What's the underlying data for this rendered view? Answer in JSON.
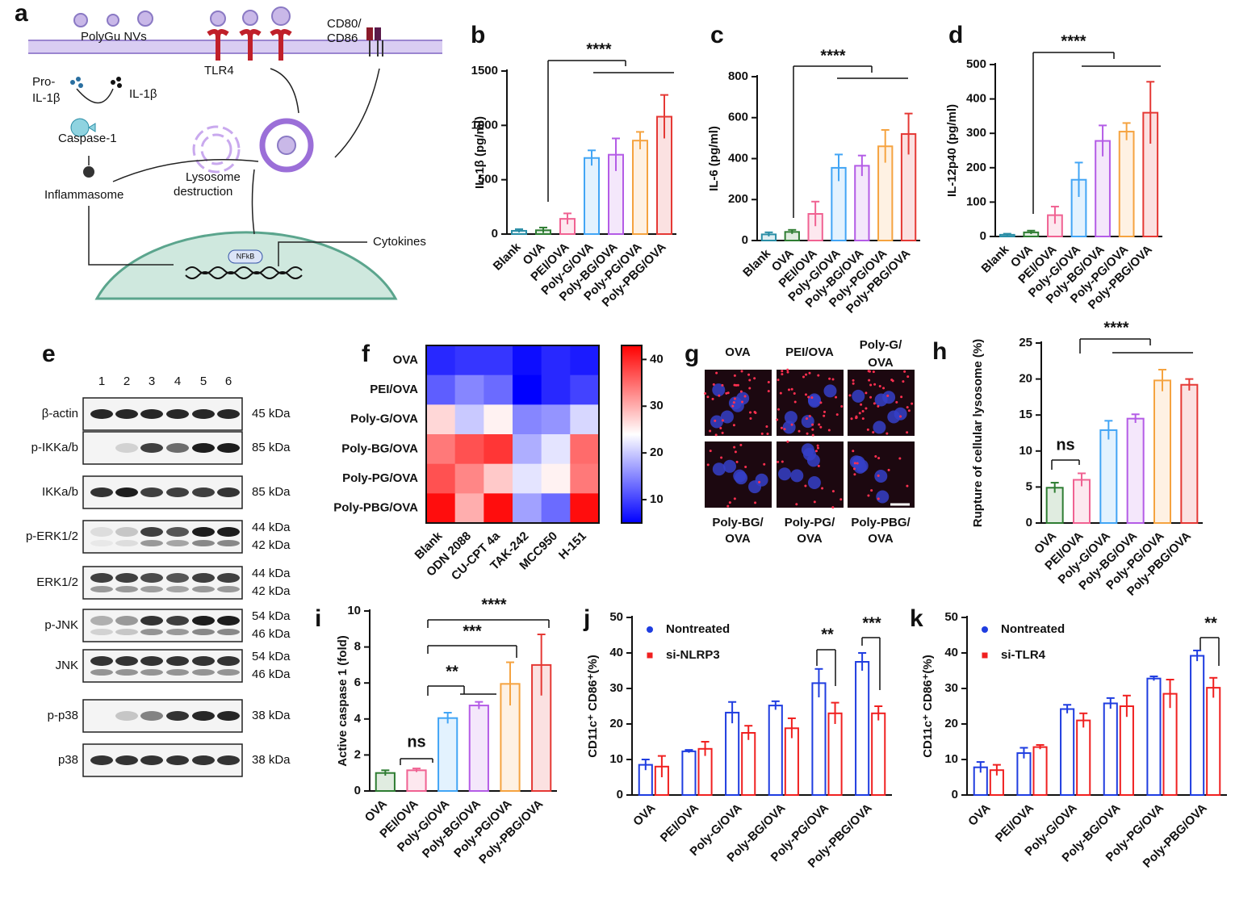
{
  "diagram": {
    "labels": [
      "a",
      "PolyGu NVs",
      "TLR4",
      "CD80/",
      "CD86",
      "Pro-",
      "IL-1β",
      "IL-1β",
      "Caspase-1",
      "Lysosome",
      "destruction",
      "Inflammasome",
      "NFkB",
      "Cytokines"
    ]
  },
  "blot": {
    "panel": "e",
    "lanes": [
      "1",
      "2",
      "3",
      "4",
      "5",
      "6"
    ],
    "rows": [
      {
        "name": "β-actin",
        "sizes": [
          "45 kDa"
        ]
      },
      {
        "name": "p-IKKa/b",
        "sizes": [
          "85 kDa"
        ]
      },
      {
        "name": "IKKa/b",
        "sizes": [
          "85 kDa"
        ]
      },
      {
        "name": "p-ERK1/2",
        "sizes": [
          "44 kDa",
          "42 kDa"
        ]
      },
      {
        "name": "ERK1/2",
        "sizes": [
          "44 kDa",
          "42 kDa"
        ]
      },
      {
        "name": "p-JNK",
        "sizes": [
          "54 kDa",
          "46 kDa"
        ]
      },
      {
        "name": "JNK",
        "sizes": [
          "54 kDa",
          "46 kDa"
        ]
      },
      {
        "name": "p-p38",
        "sizes": [
          "38 kDa"
        ]
      },
      {
        "name": "p38",
        "sizes": [
          "38 kDa"
        ]
      }
    ]
  },
  "micrographs": {
    "panel": "g",
    "labels": [
      [
        "OVA"
      ],
      [
        "PEI/OVA"
      ],
      [
        "Poly-G/",
        "OVA"
      ],
      [
        "Poly-BG/",
        "OVA"
      ],
      [
        "Poly-PG/",
        "OVA"
      ],
      [
        "Poly-PBG/",
        "OVA"
      ]
    ]
  },
  "chart_data": [
    {
      "type": "bar",
      "panel": "b",
      "ylabel": "IL-1β (pg/ml)",
      "categories": [
        "Blank",
        "OVA",
        "PEI/OVA",
        "Poly-G/OVA",
        "Poly-BG/OVA",
        "Poly-PG/OVA",
        "Poly-PBG/OVA"
      ],
      "values": [
        30,
        35,
        140,
        700,
        730,
        860,
        1080
      ],
      "errors": [
        15,
        25,
        50,
        70,
        150,
        80,
        200
      ],
      "colors": [
        "#2a8ea6",
        "#2e7d32",
        "#f06292",
        "#42a5f5",
        "#b45ce6",
        "#f5a340",
        "#e53935"
      ],
      "ylim": [
        0,
        1500
      ],
      "yticks": [
        0,
        500,
        1000,
        1500
      ],
      "annotations": [
        "****"
      ]
    },
    {
      "type": "bar",
      "panel": "c",
      "ylabel": "IL-6 (pg/ml)",
      "categories": [
        "Blank",
        "OVA",
        "PEI/OVA",
        "Poly-G/OVA",
        "Poly-BG/OVA",
        "Poly-PG/OVA",
        "Poly-PBG/OVA"
      ],
      "values": [
        30,
        42,
        130,
        355,
        365,
        460,
        520
      ],
      "errors": [
        10,
        10,
        60,
        65,
        50,
        80,
        100
      ],
      "colors": [
        "#2a8ea6",
        "#2e7d32",
        "#f06292",
        "#42a5f5",
        "#b45ce6",
        "#f5a340",
        "#e53935"
      ],
      "ylim": [
        0,
        800
      ],
      "yticks": [
        0,
        200,
        400,
        600,
        800
      ],
      "annotations": [
        "****"
      ]
    },
    {
      "type": "bar",
      "panel": "d",
      "ylabel": "IL-12p40 (pg/ml)",
      "categories": [
        "Blank",
        "OVA",
        "PEI/OVA",
        "Poly-G/OVA",
        "Poly-BG/OVA",
        "Poly-PG/OVA",
        "Poly-PBG/OVA"
      ],
      "values": [
        5,
        12,
        62,
        165,
        278,
        305,
        360
      ],
      "errors": [
        3,
        5,
        25,
        50,
        45,
        25,
        90
      ],
      "colors": [
        "#2a8ea6",
        "#2e7d32",
        "#f06292",
        "#42a5f5",
        "#b45ce6",
        "#f5a340",
        "#e53935"
      ],
      "ylim": [
        0,
        500
      ],
      "yticks": [
        0,
        100,
        200,
        300,
        400,
        500
      ],
      "annotations": [
        "****"
      ]
    },
    {
      "type": "heatmap",
      "panel": "f",
      "rows": [
        "OVA",
        "PEI/OVA",
        "Poly-G/OVA",
        "Poly-BG/OVA",
        "Poly-PG/OVA",
        "Poly-PBG/OVA"
      ],
      "columns": [
        "Blank",
        "ODN 2088",
        "CU-CPT 4a",
        "TAK-242",
        "MCC950",
        "H-151"
      ],
      "values": [
        [
          8,
          9,
          9,
          6,
          8,
          7
        ],
        [
          12,
          15,
          13,
          5,
          8,
          10
        ],
        [
          27,
          20,
          25,
          15,
          16,
          21
        ],
        [
          34,
          37,
          39,
          18,
          22,
          35
        ],
        [
          37,
          33,
          28,
          22,
          25,
          34
        ],
        [
          42,
          30,
          42,
          17,
          13,
          42
        ]
      ],
      "zlim": [
        5,
        43
      ],
      "zticks": [
        10,
        20,
        30,
        40
      ],
      "colorscale": [
        "#0000ff",
        "#ffffff",
        "#ff0000"
      ]
    },
    {
      "type": "bar",
      "panel": "h",
      "ylabel": "Rupture of cellular lysosome (%)",
      "categories": [
        "OVA",
        "PEI/OVA",
        "Poly-G/OVA",
        "Poly-BG/OVA",
        "Poly-PG/OVA",
        "Poly-PBG/OVA"
      ],
      "values": [
        4.9,
        6,
        12.9,
        14.5,
        19.8,
        19.2
      ],
      "errors": [
        0.7,
        0.9,
        1.3,
        0.6,
        1.5,
        0.8
      ],
      "colors": [
        "#2e7d32",
        "#f06292",
        "#42a5f5",
        "#b45ce6",
        "#f5a340",
        "#e53935"
      ],
      "ylim": [
        0,
        25
      ],
      "yticks": [
        0,
        5,
        10,
        15,
        20,
        25
      ],
      "annotations": [
        "****",
        "ns"
      ]
    },
    {
      "type": "bar",
      "panel": "i",
      "ylabel": "Active caspase 1 (fold)",
      "categories": [
        "OVA",
        "PEI/OVA",
        "Poly-G/OVA",
        "Poly-BG/OVA",
        "Poly-PG/OVA",
        "Poly-PBG/OVA"
      ],
      "values": [
        1.0,
        1.15,
        4.05,
        4.75,
        5.95,
        7.0
      ],
      "errors": [
        0.15,
        0.1,
        0.3,
        0.2,
        1.2,
        1.7
      ],
      "colors": [
        "#2e7d32",
        "#f06292",
        "#42a5f5",
        "#b45ce6",
        "#f5a340",
        "#e53935"
      ],
      "ylim": [
        0,
        10
      ],
      "yticks": [
        0,
        2,
        4,
        6,
        8,
        10
      ],
      "annotations": [
        "ns",
        "**",
        "***",
        "****"
      ]
    },
    {
      "type": "grouped_bar",
      "panel": "j",
      "ylabel": "CD11c⁺ CD86⁺(%)",
      "categories": [
        "OVA",
        "PEI/OVA",
        "Poly-G/OVA",
        "Poly-BG/OVA",
        "Poly-PG/OVA",
        "Poly-PBG/OVA"
      ],
      "series": [
        {
          "name": "Nontreated",
          "color": "#1f3de0",
          "values": [
            8.5,
            12.3,
            23.2,
            25.2,
            31.5,
            37.5
          ],
          "errors": [
            1.5,
            0.4,
            3,
            1.2,
            4,
            2.5
          ]
        },
        {
          "name": "si-NLRP3",
          "color": "#f02020",
          "values": [
            8,
            13,
            17.5,
            18.8,
            23,
            23
          ],
          "errors": [
            3,
            2,
            2,
            2.8,
            3,
            2
          ]
        }
      ],
      "ylim": [
        0,
        50
      ],
      "yticks": [
        0,
        10,
        20,
        30,
        40,
        50
      ],
      "annotations": [
        "**",
        "***"
      ]
    },
    {
      "type": "grouped_bar",
      "panel": "k",
      "ylabel": "CD11c⁺ CD86⁺(%)",
      "categories": [
        "OVA",
        "PEI/OVA",
        "Poly-G/OVA",
        "Poly-BG/OVA",
        "Poly-PG/OVA",
        "Poly-PBG/OVA"
      ],
      "series": [
        {
          "name": "Nontreated",
          "color": "#1f3de0",
          "values": [
            7.8,
            11.8,
            24.2,
            25.8,
            32.8,
            39.2
          ],
          "errors": [
            1.5,
            1.5,
            1.2,
            1.5,
            0.6,
            1.5
          ]
        },
        {
          "name": "si-TLR4",
          "color": "#f02020",
          "values": [
            7,
            13.5,
            21,
            25,
            28.5,
            30.2
          ],
          "errors": [
            1.5,
            0.6,
            2,
            3,
            4,
            2.8
          ]
        }
      ],
      "ylim": [
        0,
        50
      ],
      "yticks": [
        0,
        10,
        20,
        30,
        40,
        50
      ],
      "annotations": [
        "**"
      ]
    }
  ]
}
